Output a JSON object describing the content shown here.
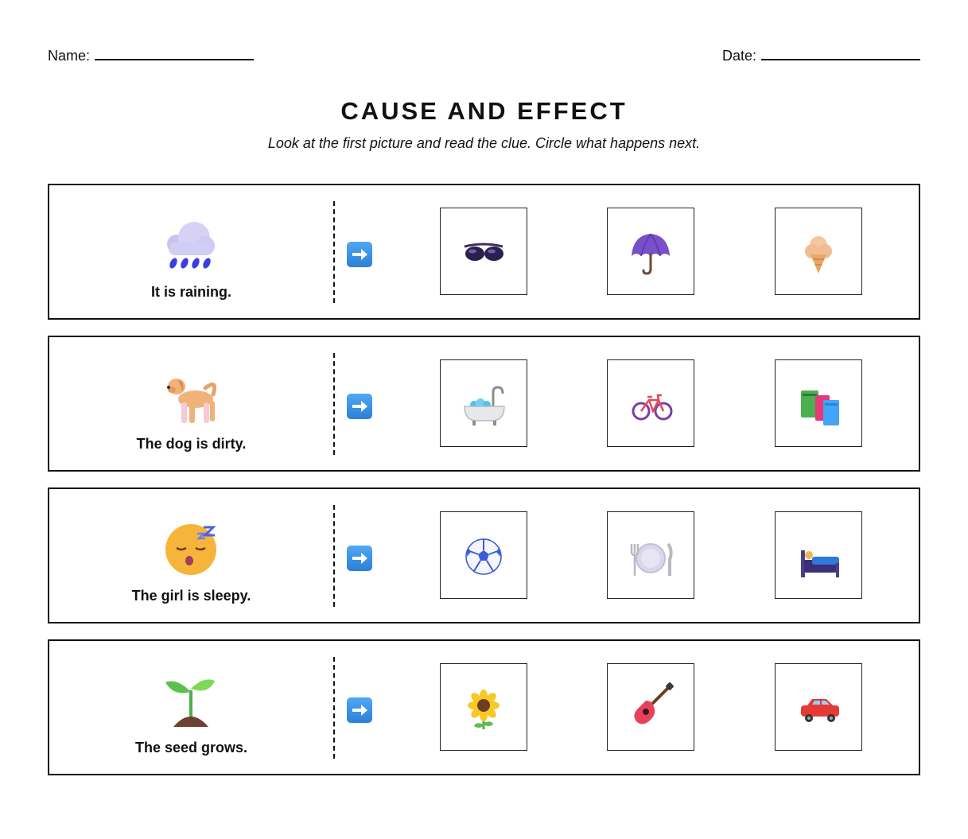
{
  "header": {
    "name_label": "Name:",
    "date_label": "Date:"
  },
  "title": "CAUSE AND EFFECT",
  "instructions": "Look at the first picture and read the clue. Circle what happens next.",
  "rows": [
    {
      "cause_icon": "rain-cloud-icon",
      "cause_text": "It is raining.",
      "choices": [
        "sunglasses-icon",
        "umbrella-icon",
        "ice-cream-icon"
      ]
    },
    {
      "cause_icon": "dog-icon",
      "cause_text": "The dog is dirty.",
      "choices": [
        "bathtub-icon",
        "bicycle-icon",
        "books-icon"
      ]
    },
    {
      "cause_icon": "sleepy-face-icon",
      "cause_text": "The girl is sleepy.",
      "choices": [
        "soccer-ball-icon",
        "plate-fork-knife-icon",
        "bed-icon"
      ]
    },
    {
      "cause_icon": "seedling-icon",
      "cause_text": "The seed grows.",
      "choices": [
        "sunflower-icon",
        "guitar-icon",
        "car-icon"
      ]
    }
  ],
  "arrow_icon": "right-arrow-icon",
  "colors": {
    "arrow": "#3d95ea",
    "border": "#111111"
  }
}
